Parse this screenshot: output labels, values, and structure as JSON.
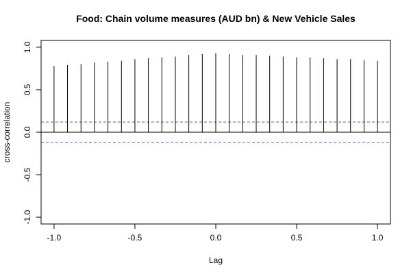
{
  "chart_data": {
    "type": "bar",
    "title": "Food: Chain volume measures (AUD bn) & New Vehicle Sales",
    "xlabel": "Lag",
    "ylabel": "cross-correlation",
    "xlim": [
      -1.08,
      1.08
    ],
    "ylim": [
      -1.08,
      1.08
    ],
    "x_ticks": [
      -1.0,
      -0.5,
      0.0,
      0.5,
      1.0
    ],
    "x_tick_labels": [
      "-1.0",
      "-0.5",
      "0.0",
      "0.5",
      "1.0"
    ],
    "y_ticks": [
      -1.0,
      -0.5,
      0.0,
      0.5,
      1.0
    ],
    "y_tick_labels": [
      "-1.0",
      "-0.5",
      "0.0",
      "0.5",
      "1.0"
    ],
    "zero_line": true,
    "confidence_bound": 0.12,
    "confidence_color": "#7777dd",
    "line_color": "#000000",
    "lags": [
      -1.0,
      -0.9167,
      -0.8333,
      -0.75,
      -0.6667,
      -0.5833,
      -0.5,
      -0.4167,
      -0.3333,
      -0.25,
      -0.1667,
      -0.0833,
      0.0,
      0.0833,
      0.1667,
      0.25,
      0.3333,
      0.4167,
      0.5,
      0.5833,
      0.6667,
      0.75,
      0.8333,
      0.9167,
      1.0
    ],
    "values": [
      0.78,
      0.79,
      0.8,
      0.82,
      0.83,
      0.84,
      0.86,
      0.87,
      0.88,
      0.89,
      0.91,
      0.92,
      0.93,
      0.92,
      0.91,
      0.91,
      0.9,
      0.89,
      0.88,
      0.88,
      0.87,
      0.86,
      0.86,
      0.85,
      0.84
    ]
  }
}
